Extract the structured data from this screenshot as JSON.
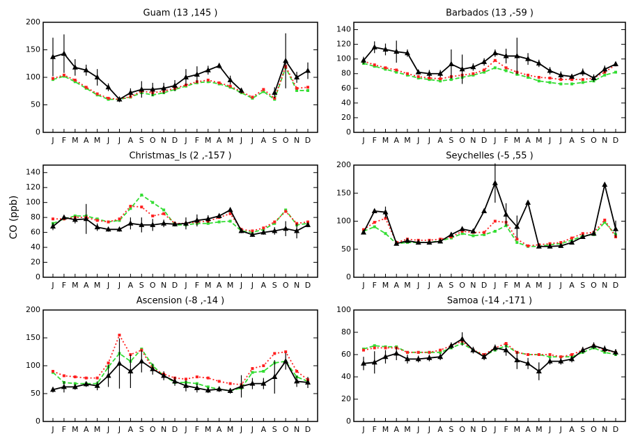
{
  "y_label": "CO (ppb)",
  "chart_data": [
    {
      "type": "line",
      "title": "Guam (13 ,145 )",
      "categories": [
        "J",
        "F",
        "M",
        "A",
        "M",
        "J",
        "J",
        "A",
        "S",
        "O",
        "N",
        "D",
        "J",
        "F",
        "M",
        "A",
        "M",
        "J",
        "J",
        "A",
        "S",
        "O",
        "N",
        "D"
      ],
      "ylim": [
        0,
        200
      ],
      "yticks": [
        0,
        50,
        100,
        150,
        200
      ],
      "series": [
        {
          "color": "#000000",
          "marker": "triangle",
          "line_style": "solid",
          "values": [
            137,
            143,
            118,
            113,
            100,
            82,
            60,
            72,
            78,
            78,
            80,
            85,
            100,
            105,
            113,
            121,
            95,
            76,
            null,
            null,
            72,
            130,
            100,
            112
          ],
          "errors": [
            35,
            35,
            15,
            10,
            15,
            7,
            5,
            8,
            15,
            12,
            10,
            10,
            15,
            15,
            8,
            5,
            8,
            5,
            null,
            null,
            10,
            50,
            10,
            15
          ]
        },
        {
          "color": "#ff2020",
          "marker": "square",
          "line_style": "dotted",
          "values": [
            98,
            104,
            95,
            82,
            70,
            62,
            60,
            65,
            75,
            72,
            75,
            80,
            86,
            92,
            95,
            90,
            84,
            74,
            64,
            78,
            62,
            120,
            80,
            82
          ]
        },
        {
          "color": "#33dd33",
          "marker": "square",
          "line_style": "dashed",
          "values": [
            96,
            102,
            92,
            80,
            68,
            60,
            60,
            64,
            72,
            68,
            72,
            78,
            84,
            90,
            92,
            88,
            82,
            72,
            62,
            74,
            60,
            118,
            76,
            76
          ]
        }
      ]
    },
    {
      "type": "line",
      "title": "Barbados (13 ,-59 )",
      "categories": [
        "J",
        "F",
        "M",
        "A",
        "M",
        "J",
        "J",
        "A",
        "S",
        "O",
        "N",
        "D",
        "J",
        "F",
        "M",
        "A",
        "M",
        "J",
        "J",
        "A",
        "S",
        "O",
        "N",
        "D"
      ],
      "ylim": [
        0,
        150
      ],
      "yticks": [
        0,
        20,
        40,
        60,
        80,
        100,
        120,
        140
      ],
      "series": [
        {
          "color": "#000000",
          "marker": "triangle",
          "line_style": "solid",
          "values": [
            98,
            116,
            113,
            110,
            108,
            82,
            80,
            80,
            93,
            86,
            89,
            96,
            108,
            104,
            104,
            100,
            94,
            84,
            78,
            76,
            82,
            74,
            86,
            93
          ],
          "errors": [
            5,
            8,
            8,
            15,
            5,
            3,
            5,
            5,
            20,
            20,
            5,
            5,
            5,
            10,
            25,
            8,
            5,
            5,
            5,
            3,
            5,
            5,
            5,
            3
          ]
        },
        {
          "color": "#ff2020",
          "marker": "square",
          "line_style": "dotted",
          "values": [
            97,
            92,
            88,
            85,
            80,
            76,
            74,
            73,
            76,
            78,
            80,
            85,
            98,
            88,
            82,
            78,
            75,
            74,
            72,
            72,
            72,
            74,
            82,
            92
          ]
        },
        {
          "color": "#33dd33",
          "marker": "square",
          "line_style": "dashed",
          "values": [
            94,
            90,
            86,
            82,
            78,
            74,
            72,
            70,
            72,
            75,
            78,
            82,
            88,
            84,
            79,
            75,
            70,
            68,
            66,
            66,
            68,
            70,
            78,
            82
          ]
        }
      ]
    },
    {
      "type": "line",
      "title": "Christmas_Is (2 ,-157 )",
      "categories": [
        "J",
        "F",
        "M",
        "A",
        "M",
        "J",
        "J",
        "A",
        "S",
        "O",
        "N",
        "D",
        "J",
        "F",
        "M",
        "A",
        "M",
        "J",
        "J",
        "A",
        "S",
        "O",
        "N",
        "D"
      ],
      "ylim": [
        0,
        150
      ],
      "yticks": [
        0,
        20,
        40,
        60,
        80,
        100,
        120,
        140
      ],
      "series": [
        {
          "color": "#000000",
          "marker": "triangle",
          "line_style": "solid",
          "values": [
            68,
            80,
            77,
            78,
            67,
            64,
            64,
            72,
            70,
            70,
            72,
            71,
            72,
            76,
            78,
            82,
            90,
            62,
            57,
            60,
            62,
            65,
            62,
            70
          ],
          "errors": [
            5,
            3,
            5,
            20,
            5,
            3,
            3,
            8,
            10,
            8,
            5,
            3,
            8,
            8,
            5,
            3,
            3,
            3,
            3,
            3,
            5,
            10,
            10,
            3
          ]
        },
        {
          "color": "#ff2020",
          "marker": "square",
          "line_style": "dotted",
          "values": [
            78,
            78,
            80,
            80,
            76,
            74,
            78,
            95,
            94,
            82,
            85,
            72,
            72,
            74,
            75,
            80,
            85,
            64,
            62,
            66,
            74,
            88,
            72,
            74
          ]
        },
        {
          "color": "#33dd33",
          "marker": "square",
          "line_style": "dashed",
          "values": [
            72,
            78,
            82,
            82,
            78,
            74,
            76,
            92,
            110,
            100,
            90,
            70,
            70,
            72,
            72,
            74,
            75,
            62,
            60,
            64,
            72,
            90,
            70,
            72
          ]
        }
      ]
    },
    {
      "type": "line",
      "title": "Seychelles (-5 ,55 )",
      "categories": [
        "J",
        "F",
        "M",
        "A",
        "M",
        "J",
        "J",
        "A",
        "S",
        "O",
        "N",
        "D",
        "J",
        "F",
        "M",
        "A",
        "M",
        "J",
        "J",
        "A",
        "S",
        "O",
        "N",
        "D"
      ],
      "ylim": [
        0,
        200
      ],
      "yticks": [
        0,
        50,
        100,
        150,
        200
      ],
      "series": [
        {
          "color": "#000000",
          "marker": "triangle",
          "line_style": "solid",
          "values": [
            80,
            118,
            116,
            60,
            65,
            62,
            62,
            64,
            76,
            86,
            82,
            118,
            168,
            112,
            90,
            133,
            55,
            55,
            56,
            62,
            72,
            78,
            165,
            86
          ],
          "errors": [
            3,
            3,
            10,
            3,
            3,
            3,
            3,
            3,
            3,
            3,
            3,
            3,
            35,
            20,
            20,
            3,
            3,
            3,
            3,
            3,
            3,
            3,
            3,
            15
          ]
        },
        {
          "color": "#ff2020",
          "marker": "square",
          "line_style": "dotted",
          "values": [
            85,
            98,
            105,
            62,
            68,
            66,
            66,
            68,
            72,
            82,
            80,
            80,
            100,
            98,
            68,
            56,
            58,
            60,
            62,
            70,
            78,
            80,
            102,
            72
          ]
        },
        {
          "color": "#33dd33",
          "marker": "square",
          "line_style": "dashed",
          "values": [
            82,
            90,
            78,
            60,
            62,
            62,
            62,
            65,
            70,
            78,
            74,
            76,
            82,
            92,
            62,
            55,
            55,
            58,
            60,
            66,
            74,
            76,
            98,
            76
          ]
        }
      ]
    },
    {
      "type": "line",
      "title": "Ascension (-8 ,-14 )",
      "categories": [
        "J",
        "F",
        "M",
        "A",
        "M",
        "J",
        "J",
        "A",
        "S",
        "O",
        "N",
        "D",
        "J",
        "F",
        "M",
        "A",
        "M",
        "J",
        "J",
        "A",
        "S",
        "O",
        "N",
        "D"
      ],
      "ylim": [
        0,
        200
      ],
      "yticks": [
        0,
        50,
        100,
        150,
        200
      ],
      "series": [
        {
          "color": "#000000",
          "marker": "triangle",
          "line_style": "solid",
          "values": [
            57,
            62,
            62,
            67,
            64,
            82,
            104,
            90,
            108,
            94,
            82,
            72,
            64,
            60,
            56,
            58,
            55,
            63,
            68,
            68,
            80,
            108,
            72,
            70
          ],
          "errors": [
            5,
            10,
            5,
            5,
            8,
            20,
            45,
            30,
            20,
            10,
            8,
            8,
            10,
            8,
            5,
            5,
            5,
            20,
            10,
            10,
            30,
            15,
            10,
            10
          ]
        },
        {
          "color": "#ff2020",
          "marker": "square",
          "line_style": "dotted",
          "values": [
            90,
            82,
            80,
            78,
            78,
            105,
            155,
            120,
            128,
            95,
            85,
            78,
            76,
            80,
            78,
            72,
            68,
            66,
            95,
            100,
            122,
            125,
            90,
            75
          ]
        },
        {
          "color": "#33dd33",
          "marker": "square",
          "line_style": "dashed",
          "values": [
            88,
            70,
            68,
            68,
            68,
            98,
            122,
            108,
            130,
            100,
            82,
            70,
            70,
            68,
            62,
            58,
            55,
            60,
            88,
            90,
            105,
            108,
            80,
            72
          ]
        }
      ]
    },
    {
      "type": "line",
      "title": "Samoa (-14 ,-171 )",
      "categories": [
        "J",
        "F",
        "M",
        "A",
        "M",
        "J",
        "J",
        "A",
        "S",
        "O",
        "N",
        "D",
        "J",
        "F",
        "M",
        "A",
        "M",
        "J",
        "J",
        "A",
        "S",
        "O",
        "N",
        "D"
      ],
      "ylim": [
        0,
        100
      ],
      "yticks": [
        0,
        20,
        40,
        60,
        80,
        100
      ],
      "series": [
        {
          "color": "#000000",
          "marker": "triangle",
          "line_style": "solid",
          "values": [
            52,
            53,
            58,
            61,
            56,
            56,
            57,
            58,
            68,
            74,
            64,
            58,
            66,
            64,
            55,
            52,
            45,
            54,
            54,
            56,
            64,
            68,
            65,
            62
          ],
          "errors": [
            6,
            10,
            6,
            6,
            4,
            3,
            3,
            3,
            3,
            6,
            3,
            3,
            3,
            5,
            8,
            5,
            8,
            3,
            3,
            3,
            3,
            3,
            3,
            3
          ]
        },
        {
          "color": "#ff2020",
          "marker": "square",
          "line_style": "dotted",
          "values": [
            64,
            66,
            66,
            66,
            62,
            62,
            62,
            64,
            68,
            72,
            64,
            60,
            66,
            70,
            62,
            60,
            60,
            60,
            58,
            60,
            64,
            68,
            64,
            62
          ]
        },
        {
          "color": "#33dd33",
          "marker": "square",
          "line_style": "dashed",
          "values": [
            65,
            68,
            67,
            67,
            62,
            62,
            62,
            62,
            66,
            70,
            64,
            59,
            64,
            68,
            62,
            60,
            60,
            58,
            58,
            58,
            62,
            66,
            62,
            60
          ]
        }
      ]
    }
  ]
}
